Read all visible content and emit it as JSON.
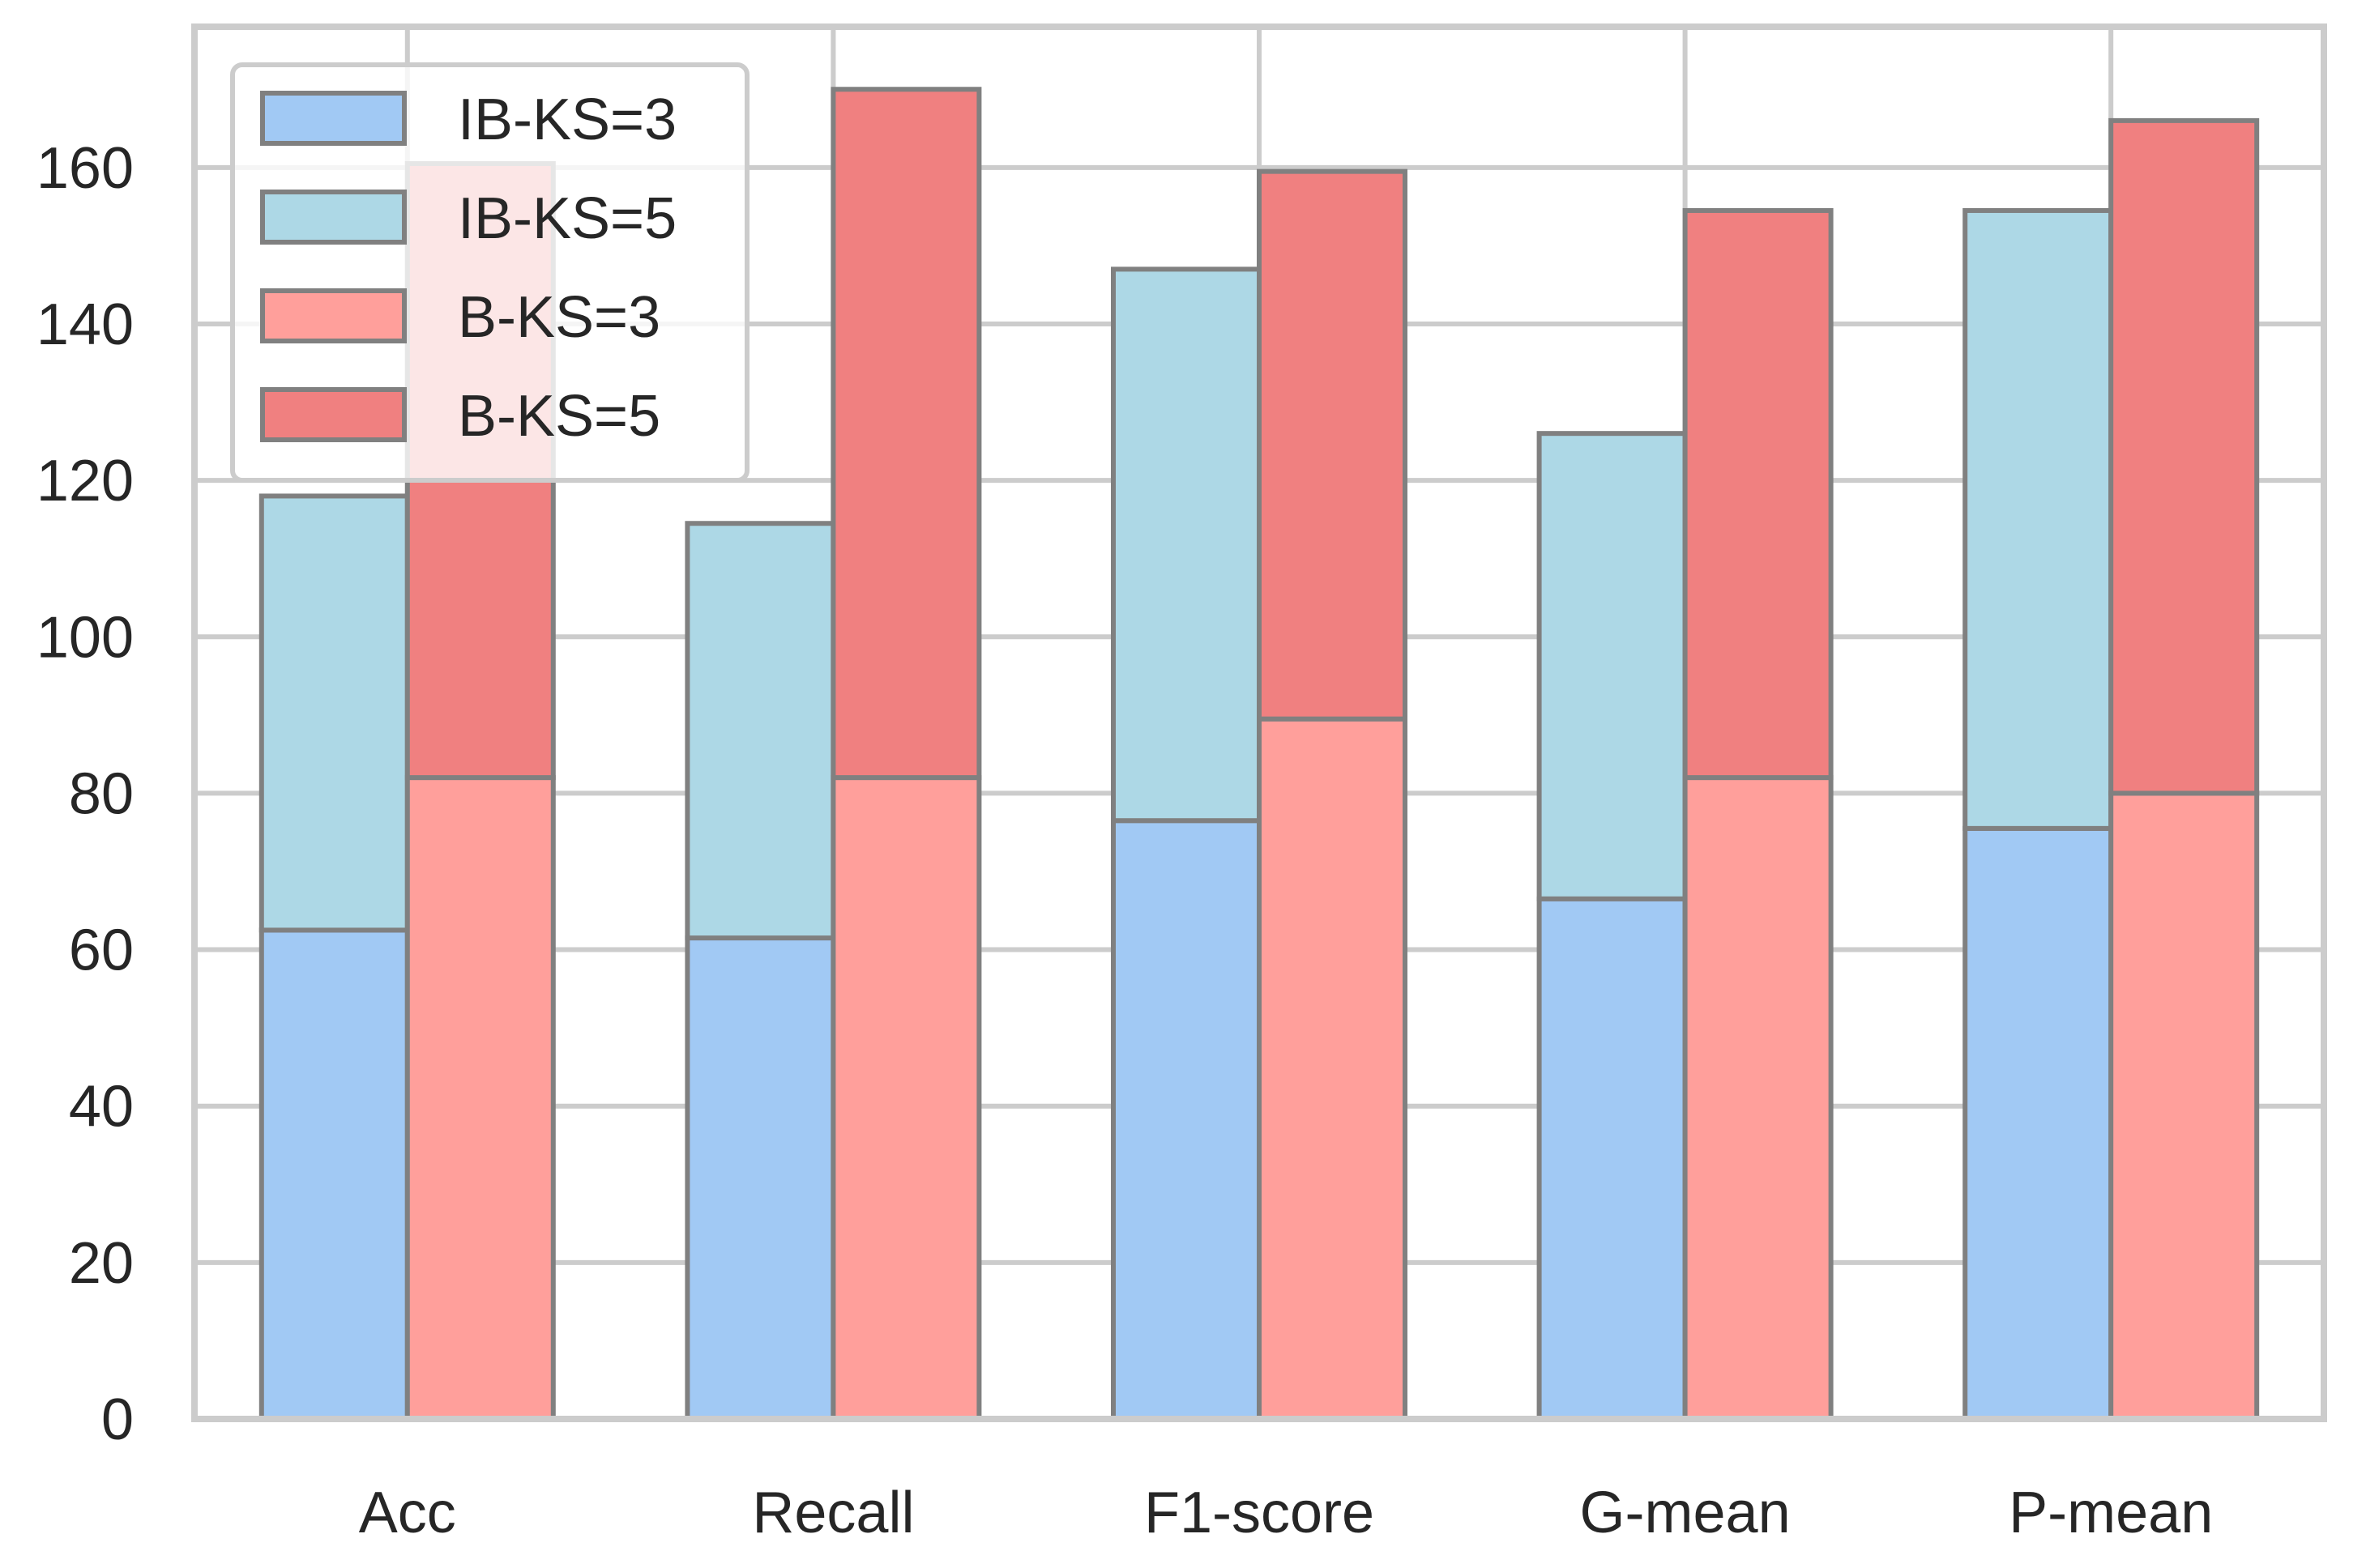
{
  "chart_data": {
    "type": "bar",
    "stacked": true,
    "title": "",
    "xlabel": "",
    "ylabel": "",
    "ylim": [
      0,
      178
    ],
    "yticks": [
      0,
      20,
      40,
      60,
      80,
      100,
      120,
      140,
      160
    ],
    "grid": true,
    "legend_position": "top-left",
    "categories": [
      "Acc",
      "Recall",
      "F1-score",
      "G-mean",
      "P-mean"
    ],
    "groups": [
      {
        "name": "IB",
        "series": [
          {
            "name": "IB-KS=3",
            "color": "#a1c9f4",
            "values": [
              62.5,
              61.5,
              76.5,
              66.5,
              75.5
            ]
          },
          {
            "name": "IB-KS=5",
            "color": "#add8e6",
            "values": [
              55.5,
              53.0,
              70.5,
              59.5,
              79.0
            ]
          }
        ]
      },
      {
        "name": "B",
        "series": [
          {
            "name": "B-KS=3",
            "color": "#ff9f9b",
            "values": [
              82.0,
              82.0,
              89.5,
              82.0,
              80.0
            ]
          },
          {
            "name": "B-KS=5",
            "color": "#f08080",
            "values": [
              78.5,
              88.0,
              70.0,
              72.5,
              86.0
            ]
          }
        ]
      }
    ],
    "edge_color": "#808080",
    "grid_color": "#cccccc"
  }
}
